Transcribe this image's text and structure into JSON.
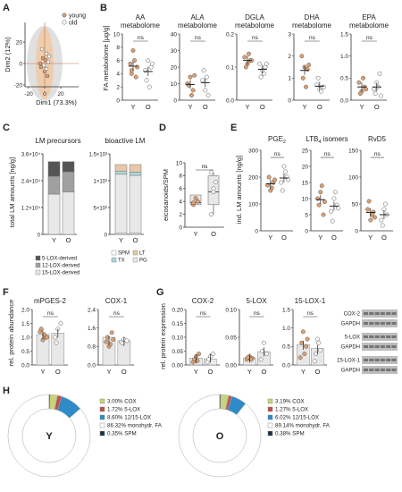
{
  "colors": {
    "young": "#e0a070",
    "old": "#ffffff",
    "bar": "#e8e8e8",
    "axis": "#333333",
    "pie_cox": "#c8d47a",
    "pie_5lox": "#c0504d",
    "pie_1215lox": "#2e8bc8",
    "pie_mono": "#ffffff",
    "pie_spm": "#1f2f4a"
  },
  "panels": {
    "A": {
      "letter": "A",
      "legend": [
        "young",
        "old"
      ],
      "xlabel": "Dim1 (73.3%)",
      "ylabel": "Dim2 (12%)",
      "xticks": [
        "-20",
        "0",
        "20"
      ],
      "yticks": [
        "20",
        "0",
        "-20"
      ]
    },
    "B": {
      "letter": "B",
      "ylabel": "FA metabolome [µg/g]",
      "groups": [
        "Y",
        "O"
      ],
      "sig": "ns",
      "plots": [
        {
          "title": [
            "AA",
            "metabolome"
          ],
          "yticks": [
            "10",
            "8",
            "6",
            "4",
            "2",
            "0"
          ],
          "ymax": 10,
          "Y": [
            5.5,
            7.5,
            3.5,
            4.0,
            6.0,
            5.0,
            4.5
          ],
          "O": [
            4.5,
            6.0,
            5.0,
            3.0,
            2.0,
            5.5
          ]
        },
        {
          "title": [
            "ALA",
            "metabolome"
          ],
          "yticks": [
            "40",
            "30",
            "20",
            "10",
            "0"
          ],
          "ymax": 40,
          "Y": [
            10,
            14,
            6,
            9,
            3,
            15
          ],
          "O": [
            12,
            6,
            3,
            18,
            14
          ]
        },
        {
          "title": [
            "DGLA",
            "metabolome"
          ],
          "yticks": [
            "0.2",
            "0.1",
            "0.0"
          ],
          "ymax": 0.2,
          "Y": [
            0.13,
            0.11,
            0.12,
            0.1,
            0.14,
            0.12
          ],
          "O": [
            0.11,
            0.09,
            0.1,
            0.07,
            0.08,
            0.11
          ]
        },
        {
          "title": [
            "DHA",
            "metabolome"
          ],
          "yticks": [
            "3",
            "2",
            "1",
            "0"
          ],
          "ymax": 3,
          "Y": [
            2.0,
            1.5,
            1.4,
            1.0,
            0.6,
            1.6
          ],
          "O": [
            0.7,
            0.5,
            0.6,
            1.0,
            0.4,
            0.6
          ]
        },
        {
          "title": [
            "EPA",
            "metabolome"
          ],
          "yticks": [
            "1.5",
            "1.0",
            "0.5",
            "0.0"
          ],
          "ymax": 1.5,
          "Y": [
            0.4,
            0.2,
            0.3,
            0.15,
            0.5,
            0.25
          ],
          "O": [
            0.25,
            0.4,
            0.6,
            0.15,
            0.3,
            0.1
          ]
        }
      ]
    },
    "C": {
      "letter": "C",
      "left": {
        "title": "LM precursors",
        "ylabel": "total LM amounts [ng/g]",
        "yticks": [
          "3.6×10⁴",
          "2.4×10⁴",
          "1.2×10⁴",
          "0"
        ],
        "ymax": 36000,
        "categories": [
          "Y",
          "O"
        ],
        "series": [
          {
            "name": "15-LOX-derived",
            "color": "#e8e8e8",
            "values": [
              18000,
              19000
            ]
          },
          {
            "name": "12-LOX-derived",
            "color": "#a0a0a0",
            "values": [
              8000,
              9000
            ]
          },
          {
            "name": "5-LOX-derived",
            "color": "#555555",
            "values": [
              6500,
              4500
            ]
          }
        ],
        "legend": [
          "5-LOX-derived",
          "12-LOX-derived",
          "15-LOX-derived"
        ]
      },
      "right": {
        "title": "bioactive LM",
        "yticks": [
          "1.5×10³",
          "1×10³",
          "5×10²",
          "0"
        ],
        "ymax": 1500,
        "categories": [
          "Y",
          "O"
        ],
        "series": [
          {
            "name": "SPM",
            "color": "#ffffff",
            "values": [
              20,
              20
            ]
          },
          {
            "name": "PG",
            "color": "#e8e8e8",
            "values": [
              1100,
              1080
            ]
          },
          {
            "name": "TX",
            "color": "#aad8dc",
            "values": [
              60,
              60
            ]
          },
          {
            "name": "LT",
            "color": "#e8c8a8",
            "values": [
              120,
              140
            ]
          }
        ],
        "legend": [
          "SPM",
          "LT",
          "TX",
          "PG"
        ]
      }
    },
    "D": {
      "letter": "D",
      "ylabel": "eicosanoids/SPM",
      "yticks": [
        "10",
        "8",
        "6",
        "4",
        "2",
        "0"
      ],
      "ymax": 10,
      "categories": [
        "Y",
        "O"
      ],
      "sig": "ns",
      "box": [
        {
          "min": 3.5,
          "q1": 3.5,
          "median": 3.8,
          "q3": 5.0,
          "max": 5.0
        },
        {
          "min": 2.0,
          "q1": 3.5,
          "median": 5.5,
          "q3": 8.0,
          "max": 8.5
        }
      ],
      "Y": [
        3.5,
        4.5,
        4.0,
        3.8
      ],
      "O": [
        2.0,
        5.5,
        7.0,
        8.5,
        6.0
      ]
    },
    "E": {
      "letter": "E",
      "ylabel": "ind. LM amounts [ng/g]",
      "groups": [
        "Y",
        "O"
      ],
      "sig": "ns",
      "plots": [
        {
          "title": "PGE",
          "sub": "2",
          "yticks": [
            "300",
            "200",
            "100",
            "0"
          ],
          "ymax": 300,
          "Y": [
            170,
            150,
            180,
            200,
            160,
            190
          ],
          "O": [
            180,
            240,
            200,
            150,
            220,
            190
          ]
        },
        {
          "title": "LTB",
          "sub": "4",
          "title_rest": " isomers",
          "yticks": [
            "25",
            "20",
            "15",
            "10",
            "5",
            "0"
          ],
          "ymax": 25,
          "Y": [
            10,
            12,
            5,
            8,
            14,
            9
          ],
          "O": [
            6,
            10,
            8,
            3,
            12,
            7
          ]
        },
        {
          "title": "RvD5",
          "yticks": [
            "150",
            "100",
            "50",
            "0"
          ],
          "ymax": 150,
          "Y": [
            40,
            20,
            35,
            55,
            30,
            25
          ],
          "O": [
            20,
            40,
            30,
            10,
            50
          ]
        }
      ]
    },
    "F": {
      "letter": "F",
      "ylabel": "rel. protein abundance",
      "groups": [
        "Y",
        "O"
      ],
      "sig": "ns",
      "plots": [
        {
          "title": "mPGES-2",
          "yticks": [
            "2.0",
            "1.5",
            "1.0",
            "0.5",
            "0.0"
          ],
          "ymax": 2.0,
          "bar": [
            1.1,
            1.15
          ],
          "Y": [
            1.2,
            0.9,
            1.0,
            1.3,
            1.1,
            1.0
          ],
          "O": [
            1.0,
            1.3,
            1.5,
            0.8
          ]
        },
        {
          "title": "COX-1",
          "yticks": [
            "2.4",
            "1.6",
            "0.8",
            "0.0"
          ],
          "ymax": 2.4,
          "bar": [
            1.2,
            1.05
          ],
          "Y": [
            1.0,
            0.8,
            1.4,
            1.2,
            0.9,
            1.1
          ],
          "O": [
            1.0,
            1.1,
            1.05,
            0.95
          ]
        }
      ]
    },
    "G": {
      "letter": "G",
      "ylabel": "rel. protein expression",
      "groups": [
        "Y",
        "O"
      ],
      "sig": "ns",
      "plots": [
        {
          "title": "COX-2",
          "yticks": [
            "0.20",
            "0.15",
            "0.10",
            "0.05",
            "0.00"
          ],
          "ymax": 0.2,
          "bar": [
            0.025,
            0.022
          ],
          "Y": [
            0.01,
            0.03,
            0.04,
            0.02,
            0.015
          ],
          "O": [
            0.01,
            0.03,
            0.04,
            0.02
          ]
        },
        {
          "title": "5-LOX",
          "yticks": [
            "0.10",
            "0.05",
            "0.00"
          ],
          "ymax": 0.1,
          "bar": [
            0.013,
            0.024
          ],
          "Y": [
            0.01,
            0.015,
            0.012,
            0.014,
            0.01
          ],
          "O": [
            0.01,
            0.04,
            0.02,
            0.025
          ]
        },
        {
          "title": "15-LOX-1",
          "yticks": [
            "1.5",
            "1.0",
            "0.5",
            "0.0"
          ],
          "ymax": 1.5,
          "bar": [
            0.55,
            0.45
          ],
          "Y": [
            0.2,
            0.9,
            0.5,
            0.6,
            0.3,
            0.7
          ],
          "O": [
            0.1,
            0.7,
            0.4,
            0.3,
            0.6
          ]
        }
      ],
      "blot_labels": [
        "COX-2",
        "GAPDH",
        "5-LOX",
        "GAPDH",
        "15-LOX-1",
        "GAPDH"
      ]
    },
    "H": {
      "letter": "H",
      "donuts": [
        {
          "center": "Y",
          "legend": [
            {
              "pct": "3.00%",
              "label": "COX"
            },
            {
              "pct": "1.72%",
              "label": "5-LOX"
            },
            {
              "pct": "8.60%",
              "label": "12/15-LOX"
            },
            {
              "pct": "86.32%",
              "label": "monohydr. FA"
            },
            {
              "pct": "0.35%",
              "label": "SPM"
            }
          ],
          "values": [
            3.0,
            1.72,
            8.6,
            86.32,
            0.35
          ]
        },
        {
          "center": "O",
          "legend": [
            {
              "pct": "3.19%",
              "label": "COX"
            },
            {
              "pct": "1.27%",
              "label": "5-LOX"
            },
            {
              "pct": "6.02%",
              "label": "12/15-LOX"
            },
            {
              "pct": "89.14%",
              "label": "monohydr. FA"
            },
            {
              "pct": "0.38%",
              "label": "SPM"
            }
          ],
          "values": [
            3.19,
            1.27,
            6.02,
            89.14,
            0.38
          ]
        }
      ]
    }
  },
  "chart_data": [
    {
      "type": "scatter",
      "title": "",
      "xlabel": "Dim1 (73.3%)",
      "ylabel": "Dim2 (12%)",
      "series": [
        {
          "name": "young"
        },
        {
          "name": "old"
        }
      ]
    },
    {
      "type": "scatter",
      "title": "AA metabolome",
      "ylabel": "FA metabolome [µg/g]",
      "categories": [
        "Y",
        "O"
      ],
      "ylim": [
        0,
        10
      ]
    },
    {
      "type": "scatter",
      "title": "ALA metabolome",
      "categories": [
        "Y",
        "O"
      ],
      "ylim": [
        0,
        40
      ]
    },
    {
      "type": "scatter",
      "title": "DGLA metabolome",
      "categories": [
        "Y",
        "O"
      ],
      "ylim": [
        0,
        0.2
      ]
    },
    {
      "type": "scatter",
      "title": "DHA metabolome",
      "categories": [
        "Y",
        "O"
      ],
      "ylim": [
        0,
        3
      ]
    },
    {
      "type": "scatter",
      "title": "EPA metabolome",
      "categories": [
        "Y",
        "O"
      ],
      "ylim": [
        0,
        1.5
      ]
    },
    {
      "type": "bar",
      "title": "LM precursors",
      "ylabel": "total LM amounts [ng/g]",
      "categories": [
        "Y",
        "O"
      ],
      "series": [
        {
          "name": "15-LOX-derived",
          "values": [
            18000,
            19000
          ]
        },
        {
          "name": "12-LOX-derived",
          "values": [
            8000,
            9000
          ]
        },
        {
          "name": "5-LOX-derived",
          "values": [
            6500,
            4500
          ]
        }
      ]
    },
    {
      "type": "bar",
      "title": "bioactive LM",
      "categories": [
        "Y",
        "O"
      ],
      "series": [
        {
          "name": "SPM",
          "values": [
            20,
            20
          ]
        },
        {
          "name": "PG",
          "values": [
            1100,
            1080
          ]
        },
        {
          "name": "TX",
          "values": [
            60,
            60
          ]
        },
        {
          "name": "LT",
          "values": [
            120,
            140
          ]
        }
      ]
    },
    {
      "type": "bar",
      "title": "",
      "ylabel": "eicosanoids/SPM",
      "categories": [
        "Y",
        "O"
      ],
      "ylim": [
        0,
        10
      ]
    },
    {
      "type": "pie",
      "title": "",
      "categories": [
        "COX",
        "5-LOX",
        "12/15-LOX",
        "monohydr. FA",
        "SPM"
      ],
      "values": [
        3.0,
        1.72,
        8.6,
        86.32,
        0.35
      ]
    },
    {
      "type": "pie",
      "title": "",
      "categories": [
        "COX",
        "5-LOX",
        "12/15-LOX",
        "monohydr. FA",
        "SPM"
      ],
      "values": [
        3.19,
        1.27,
        6.02,
        89.14,
        0.38
      ]
    }
  ]
}
